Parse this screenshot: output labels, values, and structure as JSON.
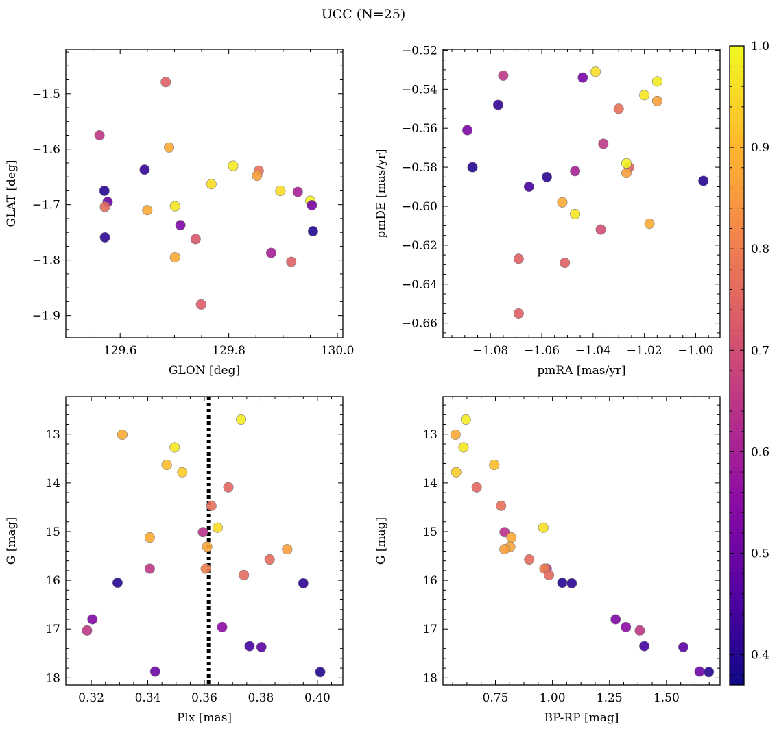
{
  "figure": {
    "title": "UCC (N=25)"
  },
  "colorbar": {
    "range": [
      0.37,
      1.0
    ],
    "ticks": [
      0.4,
      0.5,
      0.6,
      0.7,
      0.8,
      0.9,
      1.0
    ],
    "tick_labels": [
      "0.4",
      "0.5",
      "0.6",
      "0.7",
      "0.8",
      "0.9",
      "1.0"
    ],
    "colormap": "plasma"
  },
  "chart_data": [
    {
      "type": "scatter",
      "id": "glon-glat",
      "xlabel": "GLON [deg]",
      "ylabel": "GLAT [deg]",
      "xlim": [
        129.5,
        130.01
      ],
      "ylim": [
        -1.94,
        -1.42
      ],
      "xticks": [
        129.6,
        129.8,
        130.0
      ],
      "xtick_labels": [
        "129.6",
        "129.8",
        "130.0"
      ],
      "yticks": [
        -1.5,
        -1.6,
        -1.7,
        -1.8,
        -1.9
      ],
      "ytick_labels": [
        "−1.5",
        "−1.6",
        "−1.7",
        "−1.8",
        "−1.9"
      ],
      "y_inverted": false,
      "points": [
        {
          "x": 129.684,
          "y": -1.479,
          "c": 0.74
        },
        {
          "x": 129.562,
          "y": -1.575,
          "c": 0.65
        },
        {
          "x": 129.69,
          "y": -1.597,
          "c": 0.88
        },
        {
          "x": 129.645,
          "y": -1.637,
          "c": 0.42
        },
        {
          "x": 129.808,
          "y": -1.63,
          "c": 0.98
        },
        {
          "x": 129.855,
          "y": -1.639,
          "c": 0.77
        },
        {
          "x": 129.852,
          "y": -1.648,
          "c": 0.86
        },
        {
          "x": 129.768,
          "y": -1.663,
          "c": 0.96
        },
        {
          "x": 129.571,
          "y": -1.675,
          "c": 0.4
        },
        {
          "x": 129.895,
          "y": -1.675,
          "c": 0.96
        },
        {
          "x": 129.927,
          "y": -1.677,
          "c": 0.6
        },
        {
          "x": 129.577,
          "y": -1.695,
          "c": 0.5
        },
        {
          "x": 129.95,
          "y": -1.693,
          "c": 0.99
        },
        {
          "x": 129.953,
          "y": -1.701,
          "c": 0.52
        },
        {
          "x": 129.701,
          "y": -1.703,
          "c": 0.97
        },
        {
          "x": 129.572,
          "y": -1.704,
          "c": 0.76
        },
        {
          "x": 129.65,
          "y": -1.71,
          "c": 0.88
        },
        {
          "x": 129.711,
          "y": -1.737,
          "c": 0.53
        },
        {
          "x": 129.955,
          "y": -1.748,
          "c": 0.4
        },
        {
          "x": 129.572,
          "y": -1.759,
          "c": 0.41
        },
        {
          "x": 129.739,
          "y": -1.762,
          "c": 0.72
        },
        {
          "x": 129.878,
          "y": -1.787,
          "c": 0.6
        },
        {
          "x": 129.701,
          "y": -1.795,
          "c": 0.88
        },
        {
          "x": 129.915,
          "y": -1.803,
          "c": 0.74
        },
        {
          "x": 129.749,
          "y": -1.88,
          "c": 0.73
        }
      ]
    },
    {
      "type": "scatter",
      "id": "pmra-pmde",
      "xlabel": "pmRA [mas/yr]",
      "ylabel": "pmDE [mas/yr]",
      "xlim": [
        -1.0985,
        -0.9905
      ],
      "ylim": [
        -0.6675,
        -0.5195
      ],
      "xticks": [
        -1.08,
        -1.06,
        -1.04,
        -1.02,
        -1.0
      ],
      "xtick_labels": [
        "−1.08",
        "−1.06",
        "−1.04",
        "−1.02",
        "−1.00"
      ],
      "yticks": [
        -0.52,
        -0.54,
        -0.56,
        -0.58,
        -0.6,
        -0.62,
        -0.64,
        -0.66
      ],
      "ytick_labels": [
        "−0.52",
        "−0.54",
        "−0.56",
        "−0.58",
        "−0.60",
        "−0.62",
        "−0.64",
        "−0.66"
      ],
      "y_inverted": false,
      "points": [
        {
          "x": -1.039,
          "y": -0.531,
          "c": 0.96
        },
        {
          "x": -1.075,
          "y": -0.533,
          "c": 0.65
        },
        {
          "x": -1.044,
          "y": -0.534,
          "c": 0.52
        },
        {
          "x": -1.015,
          "y": -0.536,
          "c": 0.98
        },
        {
          "x": -1.02,
          "y": -0.543,
          "c": 0.97
        },
        {
          "x": -1.015,
          "y": -0.546,
          "c": 0.86
        },
        {
          "x": -1.077,
          "y": -0.548,
          "c": 0.42
        },
        {
          "x": -1.03,
          "y": -0.55,
          "c": 0.77
        },
        {
          "x": -1.089,
          "y": -0.561,
          "c": 0.53
        },
        {
          "x": -1.036,
          "y": -0.568,
          "c": 0.65
        },
        {
          "x": -1.087,
          "y": -0.58,
          "c": 0.4
        },
        {
          "x": -1.026,
          "y": -0.58,
          "c": 0.74
        },
        {
          "x": -1.027,
          "y": -0.578,
          "c": 0.99
        },
        {
          "x": -1.027,
          "y": -0.583,
          "c": 0.86
        },
        {
          "x": -1.047,
          "y": -0.582,
          "c": 0.6
        },
        {
          "x": -1.058,
          "y": -0.585,
          "c": 0.41
        },
        {
          "x": -1.065,
          "y": -0.59,
          "c": 0.44
        },
        {
          "x": -0.997,
          "y": -0.587,
          "c": 0.4
        },
        {
          "x": -1.052,
          "y": -0.598,
          "c": 0.88
        },
        {
          "x": -1.047,
          "y": -0.604,
          "c": 0.97
        },
        {
          "x": -1.018,
          "y": -0.609,
          "c": 0.88
        },
        {
          "x": -1.037,
          "y": -0.612,
          "c": 0.7
        },
        {
          "x": -1.069,
          "y": -0.627,
          "c": 0.74
        },
        {
          "x": -1.051,
          "y": -0.629,
          "c": 0.74
        },
        {
          "x": -1.069,
          "y": -0.655,
          "c": 0.74
        }
      ]
    },
    {
      "type": "scatter",
      "id": "plx-g",
      "xlabel": "Plx [mas]",
      "ylabel": "G [mag]",
      "xlim": [
        0.311,
        0.409
      ],
      "ylim": [
        12.23,
        18.15
      ],
      "xticks": [
        0.32,
        0.34,
        0.36,
        0.38,
        0.4
      ],
      "xtick_labels": [
        "0.32",
        "0.34",
        "0.36",
        "0.38",
        "0.40"
      ],
      "yticks": [
        13,
        14,
        15,
        16,
        17,
        18
      ],
      "ytick_labels": [
        "13",
        "14",
        "15",
        "16",
        "17",
        "18"
      ],
      "y_inverted": true,
      "vline": {
        "x": 0.3615,
        "style": "dotted"
      },
      "points": [
        {
          "x": 0.373,
          "y": 12.7,
          "c": 0.98
        },
        {
          "x": 0.331,
          "y": 13.01,
          "c": 0.88
        },
        {
          "x": 0.3495,
          "y": 13.27,
          "c": 0.97
        },
        {
          "x": 0.3467,
          "y": 13.63,
          "c": 0.91
        },
        {
          "x": 0.3522,
          "y": 13.78,
          "c": 0.93
        },
        {
          "x": 0.3685,
          "y": 14.09,
          "c": 0.75
        },
        {
          "x": 0.3625,
          "y": 14.47,
          "c": 0.77
        },
        {
          "x": 0.3647,
          "y": 14.92,
          "c": 0.96
        },
        {
          "x": 0.3595,
          "y": 15.01,
          "c": 0.64
        },
        {
          "x": 0.3407,
          "y": 15.12,
          "c": 0.88
        },
        {
          "x": 0.361,
          "y": 15.31,
          "c": 0.87
        },
        {
          "x": 0.3893,
          "y": 15.36,
          "c": 0.86
        },
        {
          "x": 0.3831,
          "y": 15.57,
          "c": 0.76
        },
        {
          "x": 0.3407,
          "y": 15.76,
          "c": 0.65
        },
        {
          "x": 0.3605,
          "y": 15.76,
          "c": 0.8
        },
        {
          "x": 0.374,
          "y": 15.89,
          "c": 0.76
        },
        {
          "x": 0.3293,
          "y": 16.05,
          "c": 0.4
        },
        {
          "x": 0.395,
          "y": 16.06,
          "c": 0.41
        },
        {
          "x": 0.3204,
          "y": 16.8,
          "c": 0.53
        },
        {
          "x": 0.3663,
          "y": 16.96,
          "c": 0.55
        },
        {
          "x": 0.3185,
          "y": 17.03,
          "c": 0.65
        },
        {
          "x": 0.376,
          "y": 17.35,
          "c": 0.44
        },
        {
          "x": 0.3802,
          "y": 17.37,
          "c": 0.47
        },
        {
          "x": 0.3426,
          "y": 17.87,
          "c": 0.5
        },
        {
          "x": 0.401,
          "y": 17.88,
          "c": 0.4
        }
      ]
    },
    {
      "type": "scatter",
      "id": "bprp-g",
      "xlabel": "BP-RP [mag]",
      "ylabel": "G [mag]",
      "xlim": [
        0.52,
        1.735
      ],
      "ylim": [
        12.23,
        18.15
      ],
      "xticks": [
        0.75,
        1.0,
        1.25,
        1.5
      ],
      "xtick_labels": [
        "0.75",
        "1.00",
        "1.25",
        "1.50"
      ],
      "yticks": [
        13,
        14,
        15,
        16,
        17,
        18
      ],
      "ytick_labels": [
        "13",
        "14",
        "15",
        "16",
        "17",
        "18"
      ],
      "y_inverted": true,
      "points": [
        {
          "x": 0.62,
          "y": 12.7,
          "c": 0.98
        },
        {
          "x": 0.575,
          "y": 13.01,
          "c": 0.88
        },
        {
          "x": 0.61,
          "y": 13.27,
          "c": 0.97
        },
        {
          "x": 0.745,
          "y": 13.63,
          "c": 0.91
        },
        {
          "x": 0.578,
          "y": 13.78,
          "c": 0.93
        },
        {
          "x": 0.668,
          "y": 14.09,
          "c": 0.75
        },
        {
          "x": 0.775,
          "y": 14.47,
          "c": 0.77
        },
        {
          "x": 0.96,
          "y": 14.92,
          "c": 0.96
        },
        {
          "x": 0.79,
          "y": 15.01,
          "c": 0.64
        },
        {
          "x": 0.82,
          "y": 15.12,
          "c": 0.88
        },
        {
          "x": 0.815,
          "y": 15.31,
          "c": 0.87
        },
        {
          "x": 0.79,
          "y": 15.36,
          "c": 0.86
        },
        {
          "x": 0.898,
          "y": 15.57,
          "c": 0.76
        },
        {
          "x": 0.975,
          "y": 15.76,
          "c": 0.65
        },
        {
          "x": 0.965,
          "y": 15.76,
          "c": 0.8
        },
        {
          "x": 0.985,
          "y": 15.89,
          "c": 0.76
        },
        {
          "x": 1.043,
          "y": 16.05,
          "c": 0.4
        },
        {
          "x": 1.085,
          "y": 16.06,
          "c": 0.41
        },
        {
          "x": 1.277,
          "y": 16.8,
          "c": 0.53
        },
        {
          "x": 1.322,
          "y": 16.96,
          "c": 0.55
        },
        {
          "x": 1.383,
          "y": 17.03,
          "c": 0.65
        },
        {
          "x": 1.403,
          "y": 17.35,
          "c": 0.44
        },
        {
          "x": 1.574,
          "y": 17.37,
          "c": 0.47
        },
        {
          "x": 1.645,
          "y": 17.87,
          "c": 0.5
        },
        {
          "x": 1.686,
          "y": 17.88,
          "c": 0.4
        }
      ]
    }
  ]
}
